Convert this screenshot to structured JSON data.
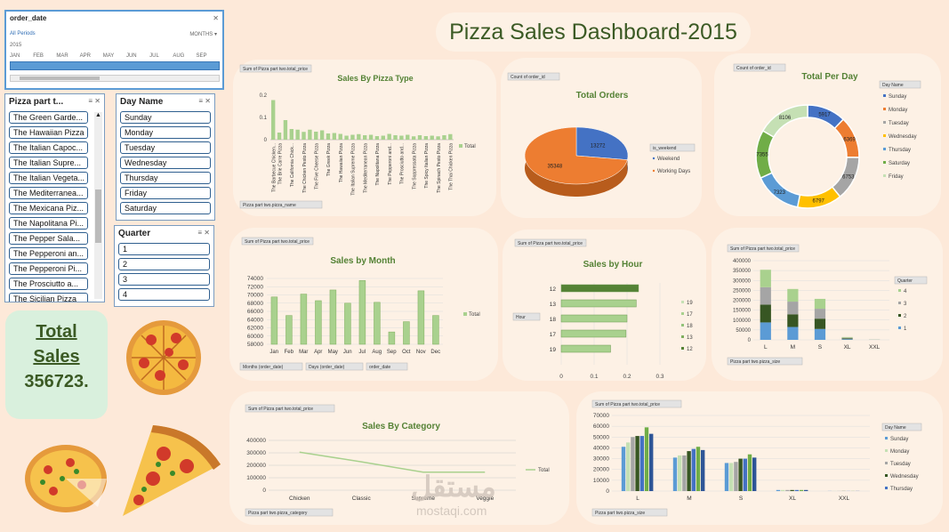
{
  "dashboard_title": "Pizza Sales Dashboard-2015",
  "timeline": {
    "field": "order_date",
    "all_periods": "All Periods",
    "granularity": "MONTHS",
    "year": "2015",
    "months": [
      "JAN",
      "FEB",
      "MAR",
      "APR",
      "MAY",
      "JUN",
      "JUL",
      "AUG",
      "SEP"
    ]
  },
  "slicer_pizza": {
    "header": "Pizza part t...",
    "items": [
      "The Green Garde...",
      "The Hawaiian Pizza",
      "The Italian Capoc...",
      "The Italian Supre...",
      "The Italian Vegeta...",
      "The Mediterranea...",
      "The Mexicana Piz...",
      "The Napolitana Pi...",
      "The Pepper Sala...",
      "The Pepperoni an...",
      "The Pepperoni Pi...",
      "The Prosciutto a...",
      "The Sicilian Pizza"
    ]
  },
  "slicer_day": {
    "header": "Day Name",
    "items": [
      "Sunday",
      "Monday",
      "Tuesday",
      "Wednesday",
      "Thursday",
      "Friday",
      "Saturday"
    ]
  },
  "slicer_quarter": {
    "header": "Quarter",
    "items": [
      "1",
      "2",
      "3",
      "4"
    ]
  },
  "total_sales": {
    "line1": "Total",
    "line2": "Sales",
    "value": "356723."
  },
  "watermark": {
    "arabic": "مستقل",
    "latin": "mostaqi.com"
  },
  "colors": {
    "green": "#a9d18e",
    "dark_green": "#548235",
    "blue": "#4472c4",
    "orange": "#ed7d31",
    "gray": "#a5a5a5",
    "yellow": "#ffc000",
    "title": "#3b5a24"
  },
  "chart_data": [
    {
      "id": "pizza_type",
      "type": "bar",
      "title": "Sales By Pizza Type",
      "value_field": "Sum of Pizza part two.total_price",
      "axis_field": "Pizza part two.pizza_name",
      "legend": [
        "Total"
      ],
      "ylim": [
        0,
        0.2
      ],
      "yticks": [
        "0.2",
        "0.1",
        "0"
      ],
      "categories": [
        "The Barbecue Chicken...",
        "The Brie Carre Pizza",
        "The Calabrese Pizza",
        "The California Chick...",
        "The Chicken Alfredo...",
        "The Chicken Pesto Pizza",
        "The Classic Deluxe...",
        "The Five Cheese Pizza",
        "The Four Cheese Pizza",
        "The Greek Pizza",
        "The Green Garden...",
        "The Hawaiian Pizza",
        "The Italian Capocollo...",
        "The Italian Supreme Pizza",
        "The Italian Vegetables...",
        "The Mediterranean Pizza",
        "The Mexicana Pizza",
        "The Napolitana Pizza",
        "The Pepper Salami...",
        "The Pepperoni and...",
        "The Pepperoni Pizza",
        "The Prosciutto and...",
        "The Sicilian Pizza",
        "The Soppressata Pizza",
        "The Southwest Chicken...",
        "The Spicy Italian Pizza",
        "The Spinach and Feta...",
        "The Spinach Pesto Pizza",
        "The Spinach Supreme...",
        "The Thai Chicken Pizza"
      ],
      "shown_labels": [
        "The Barbecue Chicken...",
        "The Brie Carre Pizza",
        "The California Chick...",
        "The Chicken Pesto Pizza",
        "The Five Cheese Pizza",
        "The Greek Pizza",
        "The Hawaiian Pizza",
        "The Italian Supreme Pizza",
        "The Mediterranean Pizza",
        "The Napolitana Pizza",
        "The Pepperoni and...",
        "The Prosciutto and...",
        "The Soppressata Pizza",
        "The Spicy Italian Pizza",
        "The Spinach Pesto Pizza",
        "The Thai Chicken Pizza"
      ],
      "values": [
        0.178,
        0.032,
        0.088,
        0.048,
        0.045,
        0.035,
        0.045,
        0.036,
        0.042,
        0.028,
        0.03,
        0.026,
        0.018,
        0.022,
        0.025,
        0.02,
        0.022,
        0.016,
        0.018,
        0.026,
        0.02,
        0.018,
        0.022,
        0.015,
        0.02,
        0.016,
        0.018,
        0.015,
        0.02,
        0.025
      ]
    },
    {
      "id": "total_orders",
      "type": "pie",
      "title": "Total Orders",
      "value_field": "Count of order_id",
      "legend_field": "is_weekend",
      "labels": [
        "Weekend",
        "Working Days"
      ],
      "values": [
        13272,
        35348
      ]
    },
    {
      "id": "per_day",
      "type": "pie",
      "title": "Total Per Day",
      "value_field": "Count of order_id",
      "legend_field": "Day Name",
      "labels": [
        "Sunday",
        "Monday",
        "Tuesday",
        "Wednesday",
        "Thursday",
        "Saturday",
        "Friday"
      ],
      "values": [
        5917,
        6369,
        6753,
        6797,
        7323,
        7355,
        8106
      ]
    },
    {
      "id": "by_month",
      "type": "bar",
      "title": "Sales by Month",
      "value_field": "Sum of Pizza part two.total_price",
      "legend": [
        "Total"
      ],
      "ylim": [
        58000,
        74000
      ],
      "yticks": [
        "74000",
        "72000",
        "70000",
        "68000",
        "66000",
        "64000",
        "62000",
        "60000",
        "58000"
      ],
      "categories": [
        "Jan",
        "Feb",
        "Mar",
        "Apr",
        "May",
        "Jun",
        "Jul",
        "Aug",
        "Sep",
        "Oct",
        "Nov",
        "Dec"
      ],
      "values": [
        69500,
        65000,
        70200,
        68600,
        71200,
        68000,
        73500,
        68200,
        61000,
        63500,
        71000,
        65000
      ],
      "filters": [
        "Months (order_date)",
        "Days (order_date)",
        "order_date"
      ]
    },
    {
      "id": "by_hour",
      "type": "bar",
      "title": "Sales by Hour",
      "value_field": "Sum of Pizza part two.total_price",
      "axis_field": "Hour",
      "ylim": [
        0,
        0.3
      ],
      "xticks": [
        "0",
        "0.1",
        "0.2",
        "0.3"
      ],
      "categories": [
        "12",
        "13",
        "18",
        "17",
        "19"
      ],
      "values": [
        0.235,
        0.228,
        0.2,
        0.197,
        0.15
      ],
      "legend": [
        "19",
        "17",
        "18",
        "13",
        "12"
      ]
    },
    {
      "id": "by_size_quarter",
      "type": "bar",
      "title": "",
      "value_field": "Sum of Pizza part two.total_price",
      "axis_field": "Pizza part two.pizza_size",
      "legend_field": "Quarter",
      "ylim": [
        0,
        400000
      ],
      "yticks": [
        "400000",
        "350000",
        "300000",
        "250000",
        "200000",
        "150000",
        "100000",
        "50000",
        "0"
      ],
      "categories": [
        "L",
        "M",
        "S",
        "XL",
        "XXL"
      ],
      "series": [
        {
          "name": "1",
          "values": [
            88000,
            65000,
            55000,
            3500,
            300
          ]
        },
        {
          "name": "2",
          "values": [
            90000,
            64000,
            52000,
            3500,
            300
          ]
        },
        {
          "name": "3",
          "values": [
            88000,
            64000,
            50000,
            3500,
            300
          ]
        },
        {
          "name": "4",
          "values": [
            88000,
            64000,
            50000,
            3500,
            300
          ]
        }
      ],
      "legend": [
        "4",
        "3",
        "2",
        "1"
      ]
    },
    {
      "id": "by_category",
      "type": "line",
      "title": "Sales By Category",
      "value_field": "Sum of Pizza part two.total_price",
      "axis_field": "Pizza part two.pizza_category",
      "legend": [
        "Total"
      ],
      "ylim": [
        0,
        400000
      ],
      "yticks": [
        "400000",
        "300000",
        "200000",
        "100000",
        "0"
      ],
      "categories": [
        "Chicken",
        "Classic",
        "Supreme",
        "Veggie"
      ],
      "values": [
        305000,
        228000,
        145000,
        145000
      ]
    },
    {
      "id": "by_size_day",
      "type": "bar",
      "title": "",
      "value_field": "Sum of Pizza part two.total_price",
      "axis_field": "Pizza part two.pizza_size",
      "legend_field": "Day Name",
      "ylim": [
        0,
        70000
      ],
      "yticks": [
        "70000",
        "60000",
        "50000",
        "40000",
        "30000",
        "20000",
        "10000",
        "0"
      ],
      "categories": [
        "L",
        "M",
        "S",
        "XL",
        "XXL"
      ],
      "series": [
        {
          "name": "Sunday",
          "values": [
            41000,
            31000,
            26000,
            1000,
            100
          ]
        },
        {
          "name": "Monday",
          "values": [
            45000,
            33000,
            26000,
            1000,
            100
          ]
        },
        {
          "name": "Tuesday",
          "values": [
            50000,
            33000,
            27000,
            1000,
            100
          ]
        },
        {
          "name": "Wednesday",
          "values": [
            51000,
            37000,
            30000,
            1000,
            100
          ]
        },
        {
          "name": "Thursday",
          "values": [
            51000,
            39000,
            30000,
            1000,
            100
          ]
        },
        {
          "name": "Friday",
          "values": [
            59000,
            41000,
            34000,
            1000,
            100
          ]
        },
        {
          "name": "Saturday",
          "values": [
            53000,
            38000,
            31000,
            1000,
            100
          ]
        }
      ],
      "legend": [
        "Sunday",
        "Monday",
        "Tuesday",
        "Wednesday",
        "Thursday"
      ]
    }
  ]
}
